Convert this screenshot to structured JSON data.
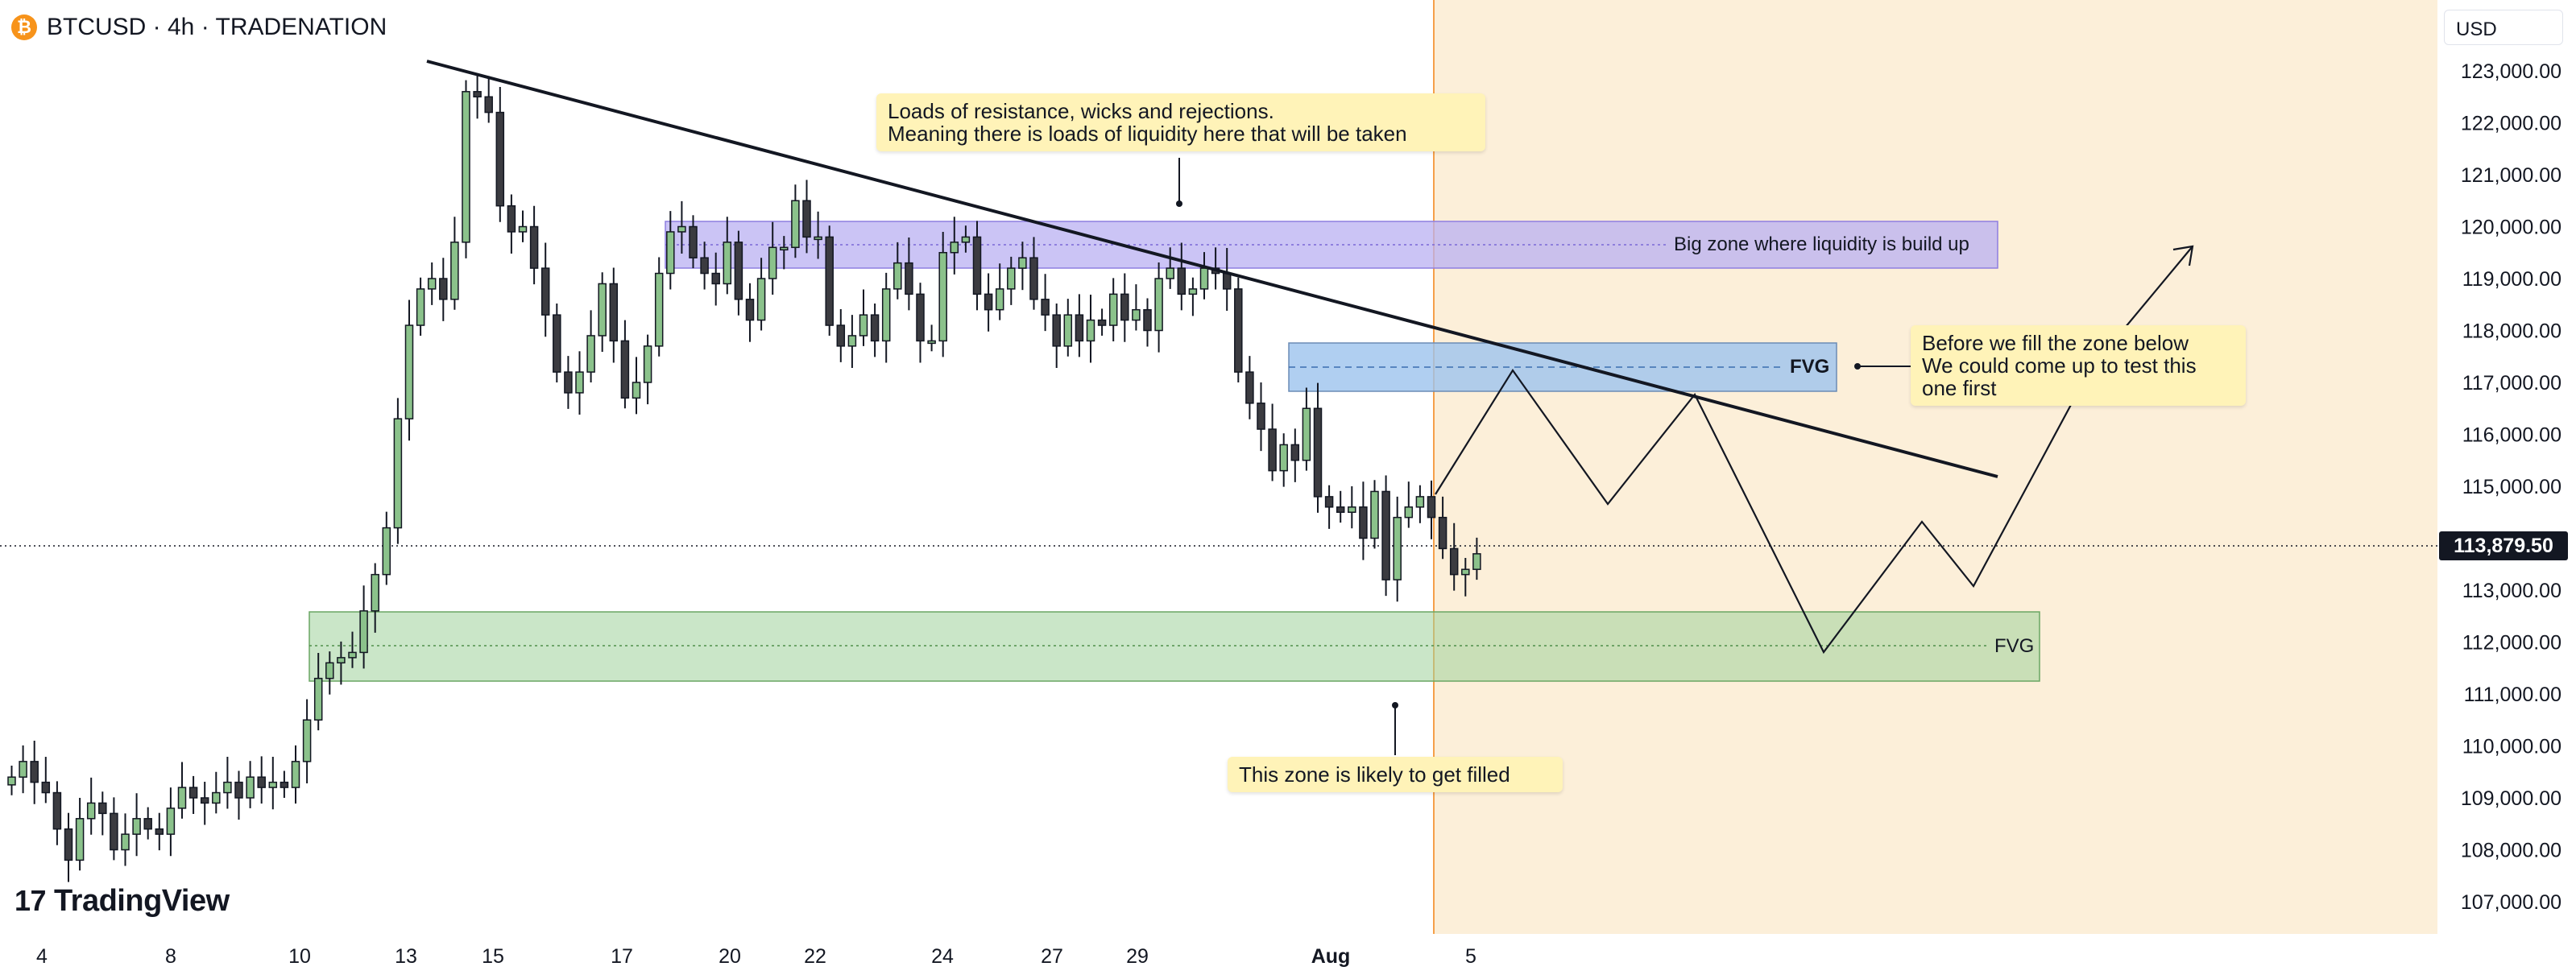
{
  "header": {
    "icon": "bitcoin-icon",
    "title": "BTCUSD · 4h · TRADENATION"
  },
  "currency": "USD",
  "last_price": "113,879.50",
  "price_axis": {
    "ticks": [
      "123,000.00",
      "122,000.00",
      "121,000.00",
      "120,000.00",
      "119,000.00",
      "118,000.00",
      "117,000.00",
      "116,000.00",
      "115,000.00",
      "113,000.00",
      "112,000.00",
      "111,000.00",
      "110,000.00",
      "109,000.00",
      "108,000.00",
      "107,000.00"
    ]
  },
  "time_axis": {
    "ticks": [
      "4",
      "8",
      "10",
      "13",
      "15",
      "17",
      "20",
      "22",
      "24",
      "27",
      "29",
      "Aug",
      "5"
    ]
  },
  "notes": {
    "resistance_line1": "Loads of resistance, wicks and rejections.",
    "resistance_line2": "Meaning there is loads of liquidity here that will be taken",
    "zone_label": "Big zone where liquidity is build up",
    "fvg_upper": "FVG",
    "fvg_lower": "FVG",
    "test_line1": "Before we fill the zone below",
    "test_line2": "We could come up to test this",
    "test_line3": "one first",
    "fill_note": "This zone is likely to get filled"
  },
  "watermark": "TradingView",
  "colors": {
    "up_candle": "#8bc28b",
    "down_candle": "#3b3b40",
    "liquidity_zone": "#a99cf0",
    "fvg_upper_zone": "#9cc3ee",
    "fvg_lower_zone": "#a8d6a1",
    "projection_area": "#fcefd9",
    "note_background": "#fff3b8"
  },
  "chart_data": {
    "type": "candlestick",
    "title": "BTCUSD · 4h · TRADENATION",
    "ylim": [
      106500,
      124000
    ],
    "current_price": 113879.5,
    "ohlc_approx_close": [
      109400,
      109700,
      109300,
      109100,
      108400,
      107800,
      108600,
      108900,
      108700,
      108000,
      108300,
      108600,
      108400,
      108300,
      108800,
      109200,
      109000,
      108900,
      109100,
      109300,
      109000,
      109400,
      109200,
      109300,
      109200,
      109700,
      110500,
      111300,
      111600,
      111700,
      111800,
      112600,
      113300,
      114200,
      116300,
      118100,
      118800,
      119000,
      118600,
      119700,
      122600,
      122500,
      122200,
      120400,
      119900,
      120000,
      119200,
      118300,
      117200,
      116800,
      117200,
      117900,
      118900,
      117800,
      116700,
      117000,
      117700,
      119100,
      119900,
      120000,
      119400,
      119100,
      118900,
      119700,
      118600,
      118200,
      119000,
      119600,
      119600,
      120500,
      119800,
      119800,
      118100,
      117700,
      117900,
      118300,
      117800,
      118800,
      119300,
      118700,
      117800,
      117800,
      119500,
      119700,
      119800,
      118700,
      118400,
      118800,
      119200,
      119400,
      118600,
      118300,
      117700,
      118300,
      117800,
      118200,
      118100,
      118700,
      118200,
      118400,
      118000,
      119000,
      119200,
      118700,
      118800,
      119200,
      119100,
      118800,
      117200,
      116600,
      116100,
      115300,
      115800,
      115500,
      116500,
      114800,
      114600,
      114500,
      114600,
      114000,
      114900,
      113200,
      114400,
      114600,
      114800,
      114400,
      113800,
      113300,
      113400,
      113700
    ],
    "zones": [
      {
        "name": "Big zone where liquidity is build up",
        "from": 119200,
        "to": 120100
      },
      {
        "name": "FVG",
        "from": 116900,
        "to": 117800
      },
      {
        "name": "FVG",
        "from": 111200,
        "to": 112600
      }
    ],
    "trendline": {
      "from": 123200,
      "to": 115200
    },
    "projection": [
      115200,
      117200,
      114700,
      116800,
      111800,
      113500,
      113100,
      119600
    ]
  }
}
